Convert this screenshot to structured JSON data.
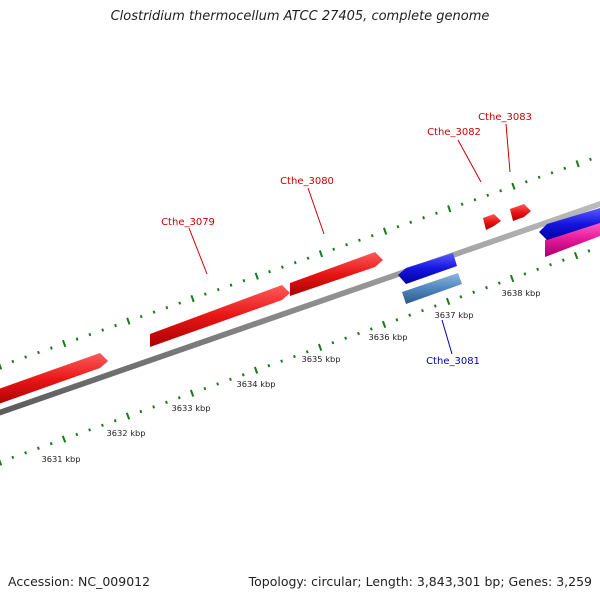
{
  "title": "Clostridium thermocellum ATCC 27405, complete genome",
  "footer": {
    "accession": "Accession: NC_009012",
    "summary": "Topology: circular; Length: 3,843,301 bp; Genes: 3,259"
  },
  "colors": {
    "forward_gene": "#ee1c1c",
    "reverse_gene": "#1a1aee",
    "reverse_rna": "#5b8ec2",
    "forward_other": "#e61a9a",
    "backbone": "#8a8a8a",
    "ticks": "#1a7a1a",
    "forward_label": "#cc0000",
    "reverse_label": "#0000aa"
  },
  "scale_labels": [
    "3631 kbp",
    "3632 kbp",
    "3633 kbp",
    "3634 kbp",
    "3635 kbp",
    "3636 kbp",
    "3637 kbp",
    "3638 kbp"
  ],
  "gene_labels": [
    {
      "name": "Cthe_3079",
      "strand": "forward"
    },
    {
      "name": "Cthe_3080",
      "strand": "forward"
    },
    {
      "name": "Cthe_3082",
      "strand": "forward"
    },
    {
      "name": "Cthe_3083",
      "strand": "forward"
    },
    {
      "name": "Cthe_3081",
      "strand": "reverse"
    }
  ]
}
